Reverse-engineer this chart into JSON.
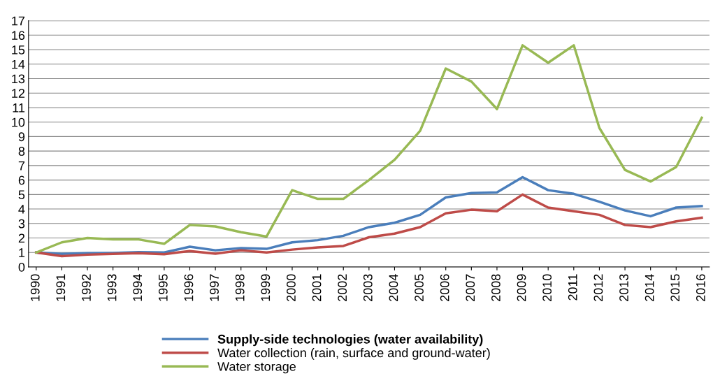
{
  "chart_data": {
    "type": "line",
    "categories": [
      "1990",
      "1991",
      "1992",
      "1993",
      "1994",
      "1995",
      "1996",
      "1997",
      "1998",
      "1999",
      "2000",
      "2001",
      "2002",
      "2003",
      "2004",
      "2005",
      "2006",
      "2007",
      "2008",
      "2009",
      "2010",
      "2011",
      "2012",
      "2013",
      "2014",
      "2015",
      "2016"
    ],
    "series": [
      {
        "name": "Supply-side technologies (water availability)",
        "color": "#4a7ebb",
        "values": [
          1.0,
          0.9,
          0.95,
          0.97,
          1.02,
          1.0,
          1.4,
          1.15,
          1.3,
          1.25,
          1.7,
          1.85,
          2.15,
          2.75,
          3.05,
          3.6,
          4.8,
          5.1,
          5.15,
          6.2,
          5.3,
          5.05,
          4.5,
          3.9,
          3.5,
          4.1,
          4.2
        ]
      },
      {
        "name": "Water collection (rain, surface and ground-water)",
        "color": "#be4b48",
        "values": [
          1.0,
          0.75,
          0.85,
          0.9,
          0.95,
          0.88,
          1.1,
          0.92,
          1.15,
          1.0,
          1.2,
          1.35,
          1.45,
          2.05,
          2.3,
          2.75,
          3.7,
          3.95,
          3.85,
          5.0,
          4.1,
          3.85,
          3.6,
          2.9,
          2.75,
          3.15,
          3.4
        ]
      },
      {
        "name": "Water storage",
        "color": "#98b954",
        "values": [
          1.0,
          1.7,
          2.0,
          1.9,
          1.9,
          1.6,
          2.9,
          2.8,
          2.4,
          2.1,
          5.3,
          4.7,
          4.7,
          6.0,
          7.4,
          9.4,
          13.7,
          12.8,
          10.9,
          15.3,
          14.1,
          15.3,
          9.6,
          6.7,
          5.9,
          6.9,
          10.3
        ]
      }
    ],
    "ylim": [
      0,
      17
    ],
    "yticks": [
      0,
      1,
      2,
      3,
      4,
      5,
      6,
      7,
      8,
      9,
      10,
      11,
      12,
      13,
      14,
      15,
      16,
      17
    ],
    "grid": "y",
    "legend": "bottom",
    "marker": "none",
    "line_style": "solid"
  }
}
